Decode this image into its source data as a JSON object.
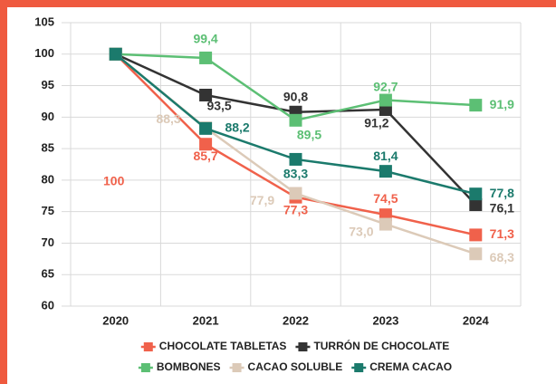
{
  "chart_data": {
    "type": "line",
    "categories": [
      "2020",
      "2021",
      "2022",
      "2023",
      "2024"
    ],
    "series": [
      {
        "name": "CHOCOLATE TABLETAS",
        "color": "#f0614b",
        "values": [
          100,
          85.7,
          77.3,
          74.5,
          71.3
        ],
        "value_labels": [
          "100",
          "85,7",
          "77,3",
          "74,5",
          "71,3"
        ]
      },
      {
        "name": "TURRÓN DE CHOCOLATE",
        "color": "#333333",
        "values": [
          100,
          93.5,
          90.8,
          91.2,
          76.1
        ],
        "value_labels": [
          null,
          "93,5",
          "90,8",
          "91,2",
          "76,1"
        ]
      },
      {
        "name": "BOMBONES",
        "color": "#5cbf74",
        "values": [
          100,
          99.4,
          89.5,
          92.7,
          91.9
        ],
        "value_labels": [
          null,
          "99,4",
          "89,5",
          "92,7",
          "91,9"
        ]
      },
      {
        "name": "CACAO SOLUBLE",
        "color": "#dccab8",
        "values": [
          100,
          88.3,
          77.9,
          73.0,
          68.3
        ],
        "value_labels": [
          null,
          "88,3",
          "77,9",
          "73,0",
          "68,3"
        ]
      },
      {
        "name": "CREMA CACAO",
        "color": "#1b7a6c",
        "values": [
          100,
          88.2,
          83.3,
          81.4,
          77.8
        ],
        "value_labels": [
          null,
          "88,2",
          "83,3",
          "81,4",
          "77,8"
        ]
      }
    ],
    "ylim": [
      60,
      105
    ],
    "yticks": [
      60,
      65,
      70,
      75,
      80,
      85,
      90,
      95,
      100,
      105
    ],
    "grid": true,
    "legend": "bottom"
  }
}
